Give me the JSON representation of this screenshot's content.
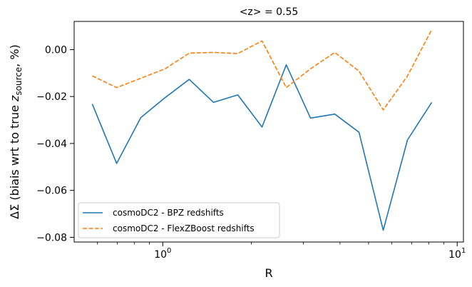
{
  "chart_data": {
    "type": "line",
    "title": "<z> = 0.55",
    "xlabel": "R",
    "ylabel_prefix": "ΔΣ (biais wrt to true ",
    "ylabel_var": "z",
    "ylabel_sub": "source",
    "ylabel_suffix": ", %)",
    "xscale": "log",
    "xlim": [
      0.5,
      10.5
    ],
    "ylim": [
      -0.082,
      0.012
    ],
    "x_major_ticks": [
      {
        "value": 1,
        "base": "10",
        "exp": "0"
      },
      {
        "value": 10,
        "base": "10",
        "exp": "1"
      }
    ],
    "x_minor_ticks": [
      0.6,
      0.7,
      0.8,
      0.9,
      2,
      3,
      4,
      5,
      6,
      7,
      8,
      9
    ],
    "y_ticks": [
      {
        "value": 0.0,
        "label": "0.00"
      },
      {
        "value": -0.02,
        "label": "−0.02"
      },
      {
        "value": -0.04,
        "label": "−0.04"
      },
      {
        "value": -0.06,
        "label": "−0.06"
      },
      {
        "value": -0.08,
        "label": "−0.08"
      }
    ],
    "grid": false,
    "legend_position": "lower-left",
    "x": [
      0.576,
      0.697,
      0.842,
      1.018,
      1.23,
      1.487,
      1.798,
      2.173,
      2.627,
      3.175,
      3.838,
      4.639,
      5.607,
      6.778,
      8.193
    ],
    "series": [
      {
        "name": "cosmoDC2 - BPZ redshifts",
        "color": "#1f77b4",
        "style": "solid",
        "values": [
          -0.0232,
          -0.0485,
          -0.029,
          -0.0205,
          -0.0127,
          -0.0225,
          -0.0193,
          -0.033,
          -0.0065,
          -0.0292,
          -0.0275,
          -0.0352,
          -0.077,
          -0.0385,
          -0.0225
        ]
      },
      {
        "name": "cosmoDC2 - FlexZBoost redshifts",
        "color": "#ff7f0e",
        "style": "dashed",
        "values": [
          -0.0112,
          -0.0162,
          -0.0122,
          -0.0082,
          -0.0015,
          -0.0012,
          -0.0017,
          0.0037,
          -0.0162,
          -0.0082,
          -0.0012,
          -0.0092,
          -0.0257,
          -0.0112,
          0.0085
        ]
      }
    ]
  }
}
